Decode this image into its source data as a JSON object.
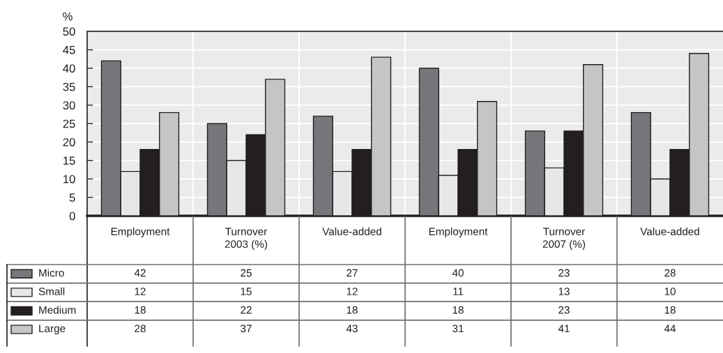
{
  "chart_data": {
    "type": "bar",
    "ylabel": "%",
    "categories": [
      "Employment",
      "Turnover\n2003 (%)",
      "Value-added",
      "Employment",
      "Turnover\n2007 (%)",
      "Value-added"
    ],
    "series": [
      {
        "name": "Micro",
        "color": "#76777a",
        "values": [
          42,
          25,
          27,
          40,
          23,
          28
        ]
      },
      {
        "name": "Small",
        "color": "#e6e7e9",
        "values": [
          12,
          15,
          12,
          11,
          13,
          10
        ]
      },
      {
        "name": "Medium",
        "color": "#231f20",
        "values": [
          18,
          22,
          18,
          18,
          23,
          18
        ]
      },
      {
        "name": "Large",
        "color": "#c4c5c7",
        "values": [
          28,
          37,
          43,
          31,
          41,
          44
        ]
      }
    ],
    "ylim": [
      0,
      50
    ],
    "yticks": [
      0,
      5,
      10,
      15,
      20,
      25,
      30,
      35,
      40,
      45,
      50
    ],
    "grid": true,
    "legend": "bottom left",
    "data_labels": true
  }
}
